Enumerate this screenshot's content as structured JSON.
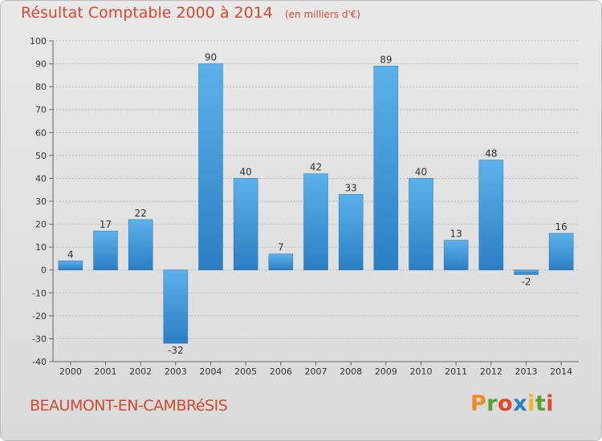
{
  "chart_data": {
    "type": "bar",
    "title": "Résultat Comptable 2000 à 2014",
    "subtitle": "(en milliers d'€)",
    "categories": [
      "2000",
      "2001",
      "2002",
      "2003",
      "2004",
      "2005",
      "2006",
      "2007",
      "2008",
      "2009",
      "2010",
      "2011",
      "2012",
      "2013",
      "2014"
    ],
    "values": [
      4,
      17,
      22,
      -32,
      90,
      40,
      7,
      42,
      33,
      89,
      40,
      13,
      48,
      -2,
      16
    ],
    "ylim": [
      -40,
      100
    ],
    "yticks": [
      -40,
      -30,
      -20,
      -10,
      0,
      10,
      20,
      30,
      40,
      50,
      60,
      70,
      80,
      90,
      100
    ],
    "xlabel": "",
    "ylabel": "",
    "grid": true
  },
  "footer": {
    "commune": "BEAUMONT-EN-CAMBRéSIS",
    "logo_text": "Proxiti",
    "logo_colors": [
      "#f08a24",
      "#5a9e2f",
      "#e04a2a",
      "#2a7fc4",
      "#f0b324",
      "#5a9e2f",
      "#e04a2a"
    ]
  }
}
